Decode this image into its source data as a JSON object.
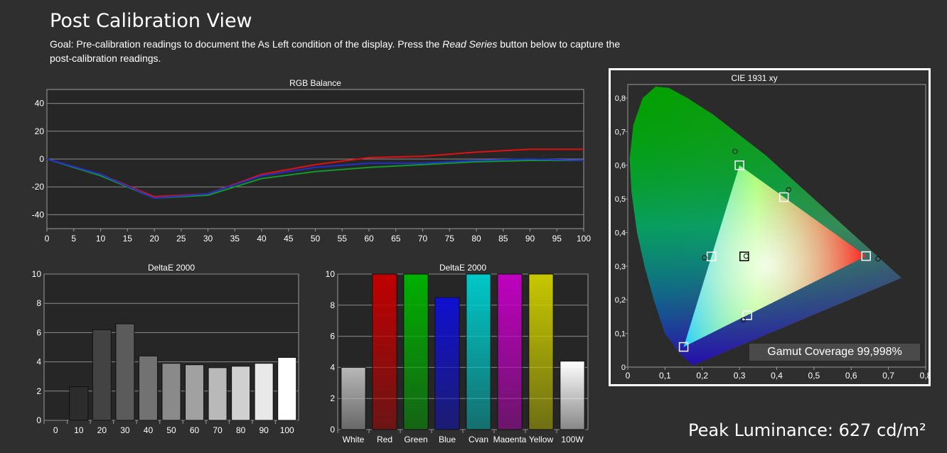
{
  "page": {
    "title": "Post Calibration View",
    "goal_prefix": "Goal: Pre-calibration readings to document the As Left condition of the display. Press the ",
    "goal_emph": "Read Series",
    "goal_suffix": " button below to capture the post-calibration readings.",
    "peak_luminance": "Peak Luminance: 627 cd/m²",
    "gamut_coverage": "Gamut Coverage 99,998%"
  },
  "colors": {
    "background": "#2f2f2f",
    "plot_bg": "#262626",
    "red": "#e01010",
    "green": "#119a2a",
    "blue": "#2030d0"
  },
  "chart_data": [
    {
      "type": "line",
      "title": "RGB Balance",
      "x": [
        0,
        10,
        20,
        30,
        40,
        50,
        60,
        70,
        80,
        90,
        100
      ],
      "xticks": [
        "0",
        "5",
        "10",
        "15",
        "20",
        "25",
        "30",
        "35",
        "40",
        "45",
        "50",
        "55",
        "60",
        "65",
        "70",
        "75",
        "80",
        "85",
        "90",
        "95",
        "100"
      ],
      "yticks": [
        "40",
        "20",
        "0",
        "-20",
        "-40"
      ],
      "xlim": [
        0,
        100
      ],
      "ylim": [
        -50,
        50
      ],
      "grid": true,
      "series": [
        {
          "color": "#e01010",
          "values": [
            0,
            -11,
            -27,
            -25,
            -11,
            -4,
            1,
            2,
            5,
            7,
            7
          ]
        },
        {
          "color": "#119a2a",
          "values": [
            0,
            -12,
            -28,
            -26,
            -14,
            -9,
            -6,
            -4,
            -2,
            -1,
            -1
          ]
        },
        {
          "color": "#2030d0",
          "values": [
            0,
            -11,
            -28,
            -25,
            -12,
            -6,
            -3,
            -3,
            -1,
            0,
            -1
          ]
        }
      ]
    },
    {
      "type": "bar",
      "title": "DeltaE 2000",
      "categories": [
        "0",
        "10",
        "20",
        "30",
        "40",
        "50",
        "60",
        "70",
        "80",
        "90",
        "100"
      ],
      "values": [
        0,
        2.3,
        6.2,
        6.6,
        4.4,
        3.9,
        3.8,
        3.6,
        3.7,
        3.9,
        4.3
      ],
      "yticks": [
        "10",
        "8",
        "6",
        "4",
        "2",
        "0"
      ],
      "ylim": [
        0,
        10
      ],
      "grid": true
    },
    {
      "type": "bar",
      "title": "DeltaE 2000",
      "categories": [
        "White",
        "Red",
        "Green",
        "Blue",
        "Cyan",
        "Magenta",
        "Yellow",
        "100W"
      ],
      "values": [
        4.0,
        10,
        10,
        8.5,
        10,
        10,
        10,
        4.4
      ],
      "bar_colors": [
        "#b8b8b8",
        "#c00000",
        "#00b000",
        "#1010d0",
        "#00c8c8",
        "#c000c0",
        "#c8c800",
        "#ffffff"
      ],
      "yticks": [
        "10",
        "8",
        "6",
        "4",
        "2",
        "0"
      ],
      "ylim": [
        0,
        10
      ],
      "grid": true
    },
    {
      "type": "scatter",
      "title": "CIE 1931 xy",
      "xticks": [
        "0",
        "0,1",
        "0,2",
        "0,3",
        "0,4",
        "0,5",
        "0,6",
        "0,7",
        "0,8"
      ],
      "yticks": [
        "0,8",
        "0,7",
        "0,6",
        "0,5",
        "0,4",
        "0,3",
        "0,2",
        "0,1",
        "0"
      ],
      "xlim": [
        0,
        0.8
      ],
      "ylim": [
        0,
        0.84
      ],
      "targets": [
        {
          "x": 0.64,
          "y": 0.33
        },
        {
          "x": 0.3,
          "y": 0.6
        },
        {
          "x": 0.15,
          "y": 0.06
        },
        {
          "x": 0.4193,
          "y": 0.5053
        },
        {
          "x": 0.2246,
          "y": 0.3287
        },
        {
          "x": 0.3209,
          "y": 0.1542
        },
        {
          "x": 0.3127,
          "y": 0.329
        }
      ],
      "measured": [
        {
          "x": 0.672,
          "y": 0.322
        },
        {
          "x": 0.288,
          "y": 0.641
        },
        {
          "x": 0.432,
          "y": 0.527
        },
        {
          "x": 0.206,
          "y": 0.325
        },
        {
          "x": 0.31,
          "y": 0.14
        },
        {
          "x": 0.318,
          "y": 0.33
        }
      ]
    }
  ]
}
